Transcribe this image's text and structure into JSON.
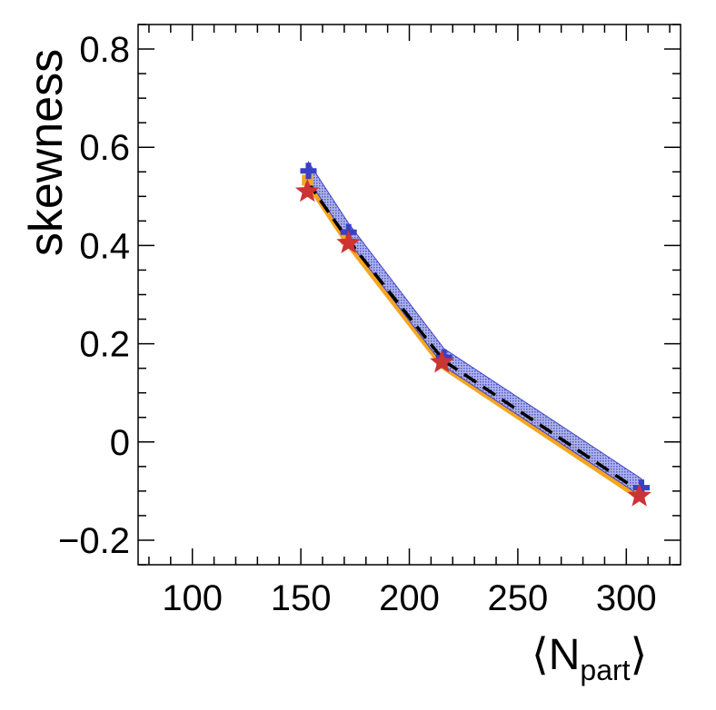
{
  "chart_data": {
    "type": "line",
    "title": "",
    "xlabel": "⟨N",
    "xlabel_sub": "part",
    "xlabel_close": "⟩",
    "ylabel": "skewness",
    "xlim": [
      75,
      325
    ],
    "ylim": [
      -0.25,
      0.85
    ],
    "x_ticks": [
      100,
      150,
      200,
      250,
      300
    ],
    "y_ticks": [
      -0.2,
      0,
      0.2,
      0.4,
      0.6,
      0.8
    ],
    "x_tick_labels": [
      "100",
      "150",
      "200",
      "250",
      "300"
    ],
    "y_tick_labels": [
      "−0.2",
      "0",
      "0.2",
      "0.4",
      "0.6",
      "0.8"
    ],
    "series": [
      {
        "name": "blue band (cross markers)",
        "color": "#3a3fc4",
        "band_color": "#8d96e0",
        "marker": "cross",
        "x": [
          153.5,
          172,
          216,
          307
        ],
        "values": [
          0.552,
          0.427,
          0.172,
          -0.093
        ],
        "band_halfwidth": 0.018
      },
      {
        "name": "orange band (square markers)",
        "color": "#f5a623",
        "band_color": "#f7a51c",
        "marker": "square",
        "x": [
          153,
          171,
          215,
          306
        ],
        "values": [
          0.533,
          0.413,
          0.162,
          -0.106
        ],
        "band_halfwidth": 0.012
      },
      {
        "name": "red stars",
        "color": "#cc3333",
        "marker": "star",
        "x": [
          153,
          172,
          215,
          306
        ],
        "values": [
          0.51,
          0.405,
          0.162,
          -0.11
        ]
      },
      {
        "name": "black dashed",
        "color": "#000000",
        "marker": "none",
        "line_style": "dashed",
        "x": [
          153,
          172,
          216,
          306
        ],
        "values": [
          0.53,
          0.41,
          0.165,
          -0.1
        ]
      }
    ]
  }
}
